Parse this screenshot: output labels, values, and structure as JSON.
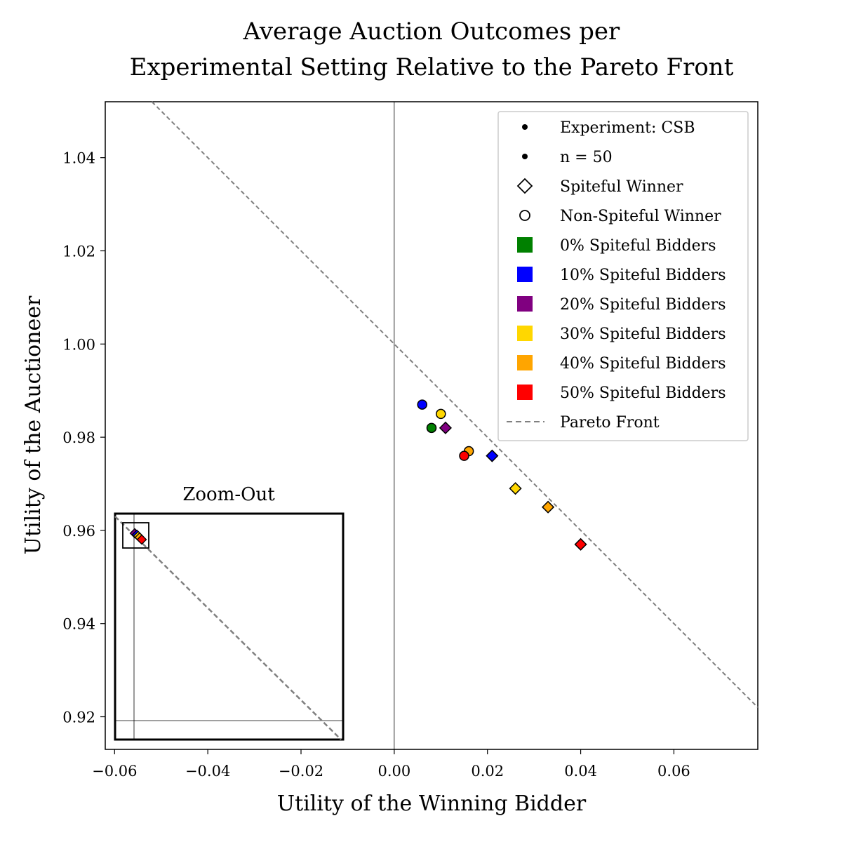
{
  "chart_data": {
    "type": "scatter",
    "title_lines": [
      "Average Auction Outcomes per",
      "Experimental Setting Relative to the Pareto Front"
    ],
    "xlabel": "Utility of the Winning Bidder",
    "ylabel": "Utility of the Auctioneer",
    "xlim": [
      -0.062,
      0.078
    ],
    "ylim": [
      0.913,
      1.052
    ],
    "xticks": [
      {
        "value": -0.06,
        "label": "−0.06"
      },
      {
        "value": -0.04,
        "label": "−0.04"
      },
      {
        "value": -0.02,
        "label": "−0.02"
      },
      {
        "value": 0.0,
        "label": "0.00"
      },
      {
        "value": 0.02,
        "label": "0.02"
      },
      {
        "value": 0.04,
        "label": "0.04"
      },
      {
        "value": 0.06,
        "label": "0.06"
      }
    ],
    "yticks": [
      {
        "value": 0.92,
        "label": "0.92"
      },
      {
        "value": 0.94,
        "label": "0.94"
      },
      {
        "value": 0.96,
        "label": "0.96"
      },
      {
        "value": 0.98,
        "label": "0.98"
      },
      {
        "value": 1.0,
        "label": "1.00"
      },
      {
        "value": 1.02,
        "label": "1.02"
      },
      {
        "value": 1.04,
        "label": "1.04"
      }
    ],
    "grid": false,
    "reference_lines": [
      {
        "orientation": "vertical",
        "x": 0.0
      }
    ],
    "pareto_front": {
      "name": "Pareto Front",
      "intercept": 1.0,
      "slope": -1,
      "color": "#808080",
      "style": "dashed"
    },
    "series": [
      {
        "name": "0% Spiteful Bidders",
        "color": "#008000",
        "points": [
          {
            "x": 0.008,
            "y": 0.982,
            "marker": "circle"
          }
        ]
      },
      {
        "name": "10% Spiteful Bidders",
        "color": "#0000ff",
        "points": [
          {
            "x": 0.006,
            "y": 0.987,
            "marker": "circle"
          },
          {
            "x": 0.021,
            "y": 0.976,
            "marker": "diamond"
          }
        ]
      },
      {
        "name": "20% Spiteful Bidders",
        "color": "#800080",
        "points": [
          {
            "x": 0.011,
            "y": 0.982,
            "marker": "diamond"
          }
        ]
      },
      {
        "name": "30% Spiteful Bidders",
        "color": "#ffd700",
        "points": [
          {
            "x": 0.01,
            "y": 0.985,
            "marker": "circle"
          },
          {
            "x": 0.026,
            "y": 0.969,
            "marker": "diamond"
          }
        ]
      },
      {
        "name": "40% Spiteful Bidders",
        "color": "#ffa500",
        "points": [
          {
            "x": 0.016,
            "y": 0.977,
            "marker": "circle"
          },
          {
            "x": 0.033,
            "y": 0.965,
            "marker": "diamond"
          }
        ]
      },
      {
        "name": "50% Spiteful Bidders",
        "color": "#ff0000",
        "points": [
          {
            "x": 0.015,
            "y": 0.976,
            "marker": "circle"
          },
          {
            "x": 0.04,
            "y": 0.957,
            "marker": "diamond"
          }
        ]
      }
    ],
    "legend": {
      "placement": "top-right",
      "entries": [
        {
          "label": "Experiment: CSB",
          "symbol": "dot"
        },
        {
          "label": "n = 50",
          "symbol": "dot"
        },
        {
          "label": "Spiteful Winner",
          "symbol": "diamond-outline"
        },
        {
          "label": "Non-Spiteful Winner",
          "symbol": "circle-outline"
        },
        {
          "label": "0% Spiteful Bidders",
          "symbol": "square",
          "color": "#008000"
        },
        {
          "label": "10% Spiteful Bidders",
          "symbol": "square",
          "color": "#0000ff"
        },
        {
          "label": "20% Spiteful Bidders",
          "symbol": "square",
          "color": "#800080"
        },
        {
          "label": "30% Spiteful Bidders",
          "symbol": "square",
          "color": "#ffd700"
        },
        {
          "label": "40% Spiteful Bidders",
          "symbol": "square",
          "color": "#ffa500"
        },
        {
          "label": "50% Spiteful Bidders",
          "symbol": "square",
          "color": "#ff0000"
        },
        {
          "label": "Pareto Front",
          "symbol": "dashed-line",
          "color": "#808080"
        }
      ]
    },
    "inset": {
      "title": "Zoom-Out",
      "placement": "bottom-left",
      "xlim": [
        0.0,
        1.0
      ],
      "ylim": [
        0.0,
        1.0
      ],
      "reference_lines": [
        {
          "orientation": "vertical",
          "x": 0.0
        },
        {
          "orientation": "horizontal",
          "y": 0.0
        }
      ],
      "zoom_box": {
        "x0": -0.01,
        "x1": 0.08,
        "y0": 0.91,
        "y1": 1.01
      }
    }
  }
}
